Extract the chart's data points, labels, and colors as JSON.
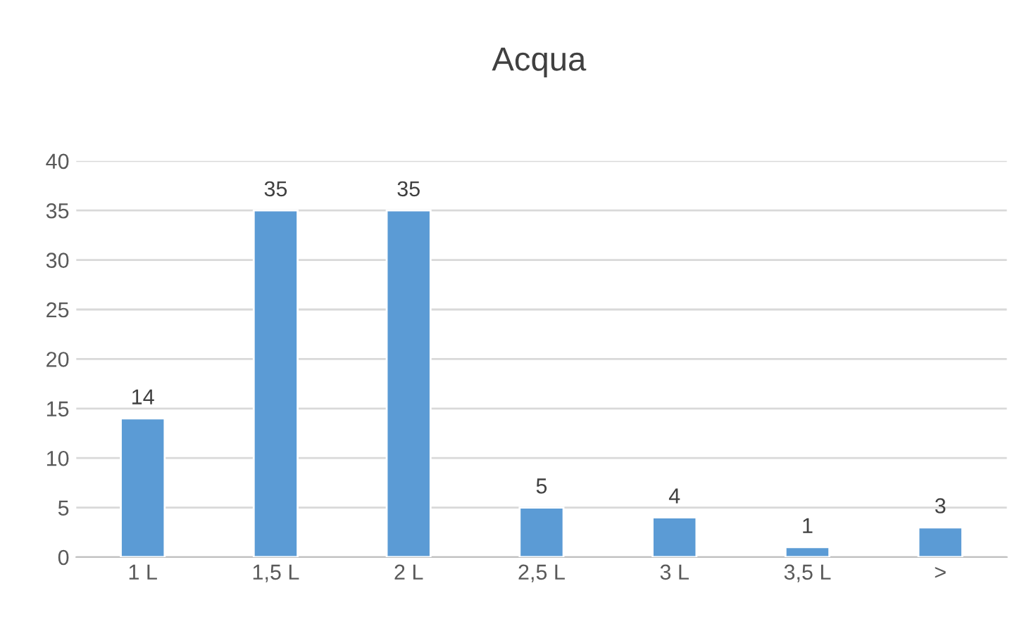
{
  "chart_data": {
    "type": "bar",
    "title": "Acqua",
    "categories": [
      "1 L",
      "1,5 L",
      "2 L",
      "2,5 L",
      "3 L",
      "3,5 L",
      ">"
    ],
    "values": [
      14,
      35,
      35,
      5,
      4,
      1,
      3
    ],
    "color": "#5b9bd5",
    "ylim": [
      0,
      40
    ],
    "yticks": [
      0,
      5,
      10,
      15,
      20,
      25,
      30,
      35,
      40
    ],
    "grid": "y",
    "data_labels": true
  }
}
